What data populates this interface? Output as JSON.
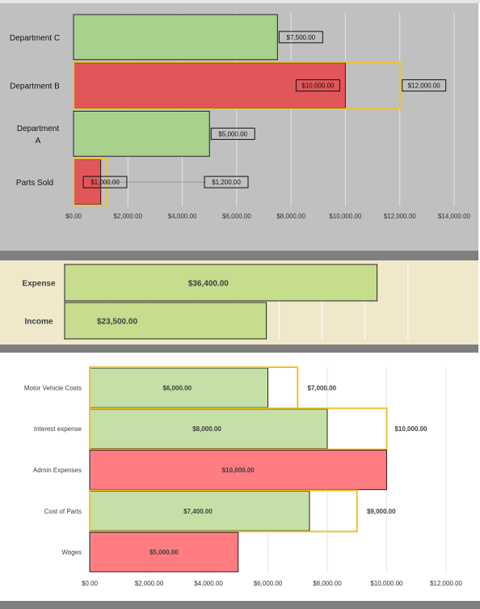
{
  "chart_data": [
    {
      "type": "bar",
      "orientation": "horizontal",
      "categories": [
        "Department C",
        "Department B",
        "Department A",
        "Parts Sold"
      ],
      "category_labels": [
        [
          "Department C"
        ],
        [
          "Department B"
        ],
        [
          "Department",
          "A"
        ],
        [
          "Parts Sold"
        ]
      ],
      "series": [
        {
          "values": [
            7500,
            10000,
            5000,
            1000
          ],
          "colors": [
            "#a9d18e",
            "#e15759",
            "#a9d18e",
            "#e15759"
          ]
        },
        {
          "values": [
            null,
            12000,
            null,
            1200
          ],
          "style": "target-outline",
          "color": "#f2c12e"
        }
      ],
      "value_labels": [
        "$7,500.00",
        "$10,000.00",
        "$5,000.00",
        "$1,000.00"
      ],
      "target_labels": [
        null,
        "$12,000.00",
        null,
        "$1,200.00"
      ],
      "xlim": [
        0,
        14000
      ],
      "x_ticks": [
        0,
        2000,
        4000,
        6000,
        8000,
        10000,
        12000,
        14000
      ],
      "x_tick_labels": [
        "$0.00",
        "$2,000.00",
        "$4,000.00",
        "$6,000.00",
        "$8,000.00",
        "$10,000.00",
        "$12,000.00",
        "$14,000.00"
      ],
      "grid": true,
      "background": "#c0c0c0"
    },
    {
      "type": "bar",
      "orientation": "horizontal",
      "categories": [
        "Expense",
        "Income"
      ],
      "series": [
        {
          "values": [
            36400,
            23500
          ],
          "colors": [
            "#c5dd8c",
            "#c5dd8c"
          ]
        }
      ],
      "value_labels": [
        "$36,400.00",
        "$23,500.00"
      ],
      "xlim": [
        0,
        45000
      ],
      "grid": true,
      "background": "#efe8cb"
    },
    {
      "type": "bar",
      "orientation": "horizontal",
      "categories": [
        "Motor Vehicle Costs",
        "Interest expense",
        "Admin Expenses",
        "Cost of Parts",
        "Wages"
      ],
      "series": [
        {
          "values": [
            6000,
            8000,
            10000,
            7400,
            5000
          ],
          "colors": [
            "#c5e0a6",
            "#c5e0a6",
            "#ff7c80",
            "#c5e0a6",
            "#ff7c80"
          ]
        },
        {
          "values": [
            7000,
            10000,
            null,
            9000,
            null
          ],
          "style": "target-outline",
          "color": "#f2c12e"
        }
      ],
      "value_labels": [
        "$6,000.00",
        "$8,000.00",
        "$10,000.00",
        "$7,400.00",
        "$5,000.00"
      ],
      "target_labels": [
        "$7,000.00",
        "$10,000.00",
        null,
        "$9,000.00",
        null
      ],
      "xlim": [
        0,
        12000
      ],
      "x_ticks": [
        0,
        2000,
        4000,
        6000,
        8000,
        10000,
        12000
      ],
      "x_tick_labels": [
        "$0.00",
        "$2,000.00",
        "$4,000.00",
        "$6,000.00",
        "$8,000.00",
        "$10,000.00",
        "$12,000.00"
      ],
      "grid": true,
      "background": "#ffffff"
    }
  ],
  "colors": {
    "target_outline": "#f2c12e",
    "panel_divider": "#7f7f7f",
    "sheet_background": "#ffffff"
  }
}
